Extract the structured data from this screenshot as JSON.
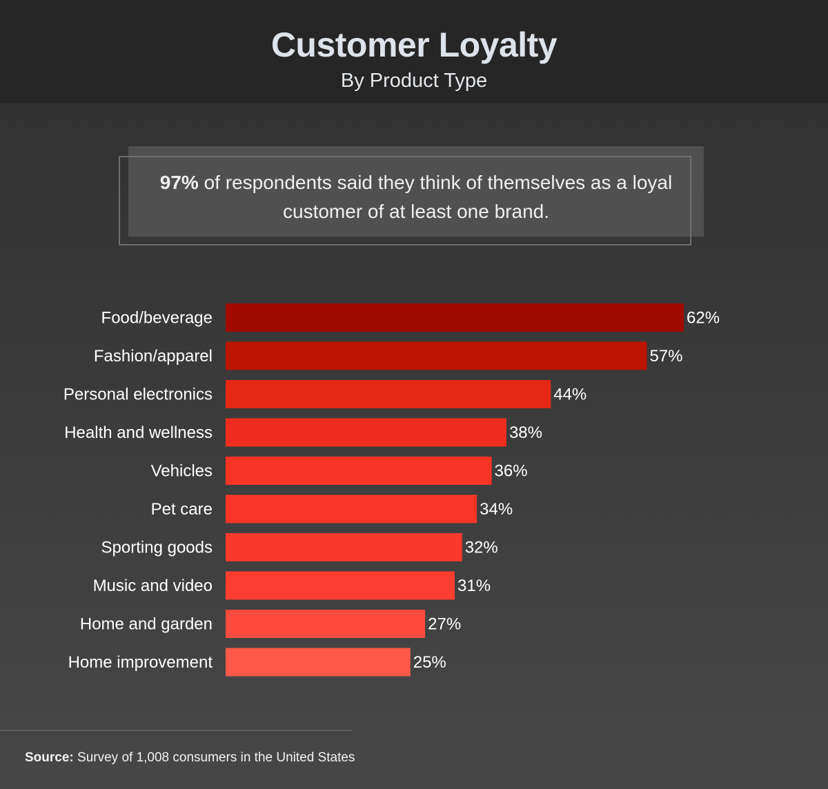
{
  "header": {
    "title": "Customer Loyalty",
    "subtitle": "By Product Type"
  },
  "callout": {
    "highlight": "97%",
    "text_line1": " of respondents said they think of themselves as a loyal",
    "text_line2": "customer of at least one brand."
  },
  "chart_data": {
    "type": "bar",
    "orientation": "horizontal",
    "title": "Customer Loyalty",
    "subtitle": "By Product Type",
    "categories": [
      "Food/beverage",
      "Fashion/apparel",
      "Personal electronics",
      "Health and wellness",
      "Vehicles",
      "Pet care",
      "Sporting goods",
      "Music and video",
      "Home and garden",
      "Home improvement"
    ],
    "values": [
      62,
      57,
      44,
      38,
      36,
      34,
      32,
      31,
      27,
      25
    ],
    "value_labels": [
      "62%",
      "57%",
      "44%",
      "38%",
      "36%",
      "34%",
      "32%",
      "31%",
      "27%",
      "25%"
    ],
    "colors": [
      "#a00a00",
      "#bb1400",
      "#e52814",
      "#ef2c1e",
      "#f73324",
      "#fa3528",
      "#fb3a2c",
      "#fb3e30",
      "#fd4c3f",
      "#fe584a"
    ],
    "xlim": [
      0,
      62
    ],
    "grid": false,
    "legend": "none"
  },
  "footer": {
    "source_label": "Source:",
    "source_text": " Survey of 1,008 consumers in the United States"
  }
}
